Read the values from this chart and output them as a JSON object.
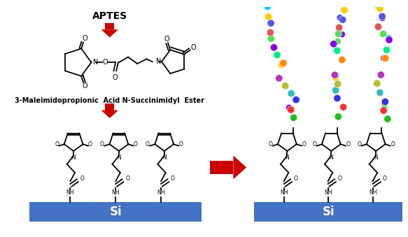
{
  "bg_color": "#ffffff",
  "si_bar_color": "#4472C4",
  "si_text_color": "#ffffff",
  "arrow_color": "#CC0000",
  "title_text": "APTES",
  "molecule_label": "3-Maleimidopropionic  Acid N-Succinimidyl  Ester",
  "si_label": "Si",
  "line_color": "#000000",
  "title_fontsize": 10,
  "label_fontsize": 7,
  "si_fontsize": 12,
  "peptide_colors": [
    "#22bb22",
    "#ee3333",
    "#3333ee",
    "#33bbbb",
    "#bbbb33",
    "#bb33bb",
    "#ffffff",
    "#ff8800",
    "#00ee88",
    "#8800ee",
    "#55dd55",
    "#dd5555",
    "#5555dd",
    "#ffcc00",
    "#00ccff",
    "#ff00cc",
    "#88ff44",
    "#ff8844",
    "#4488ff",
    "#ffff44",
    "#44ffff",
    "#ff44ff",
    "#66cc66",
    "#cc6666",
    "#6666cc",
    "#eeee22",
    "#22eeee",
    "#ee22ee",
    "#aaffaa",
    "#ffaaaa"
  ]
}
